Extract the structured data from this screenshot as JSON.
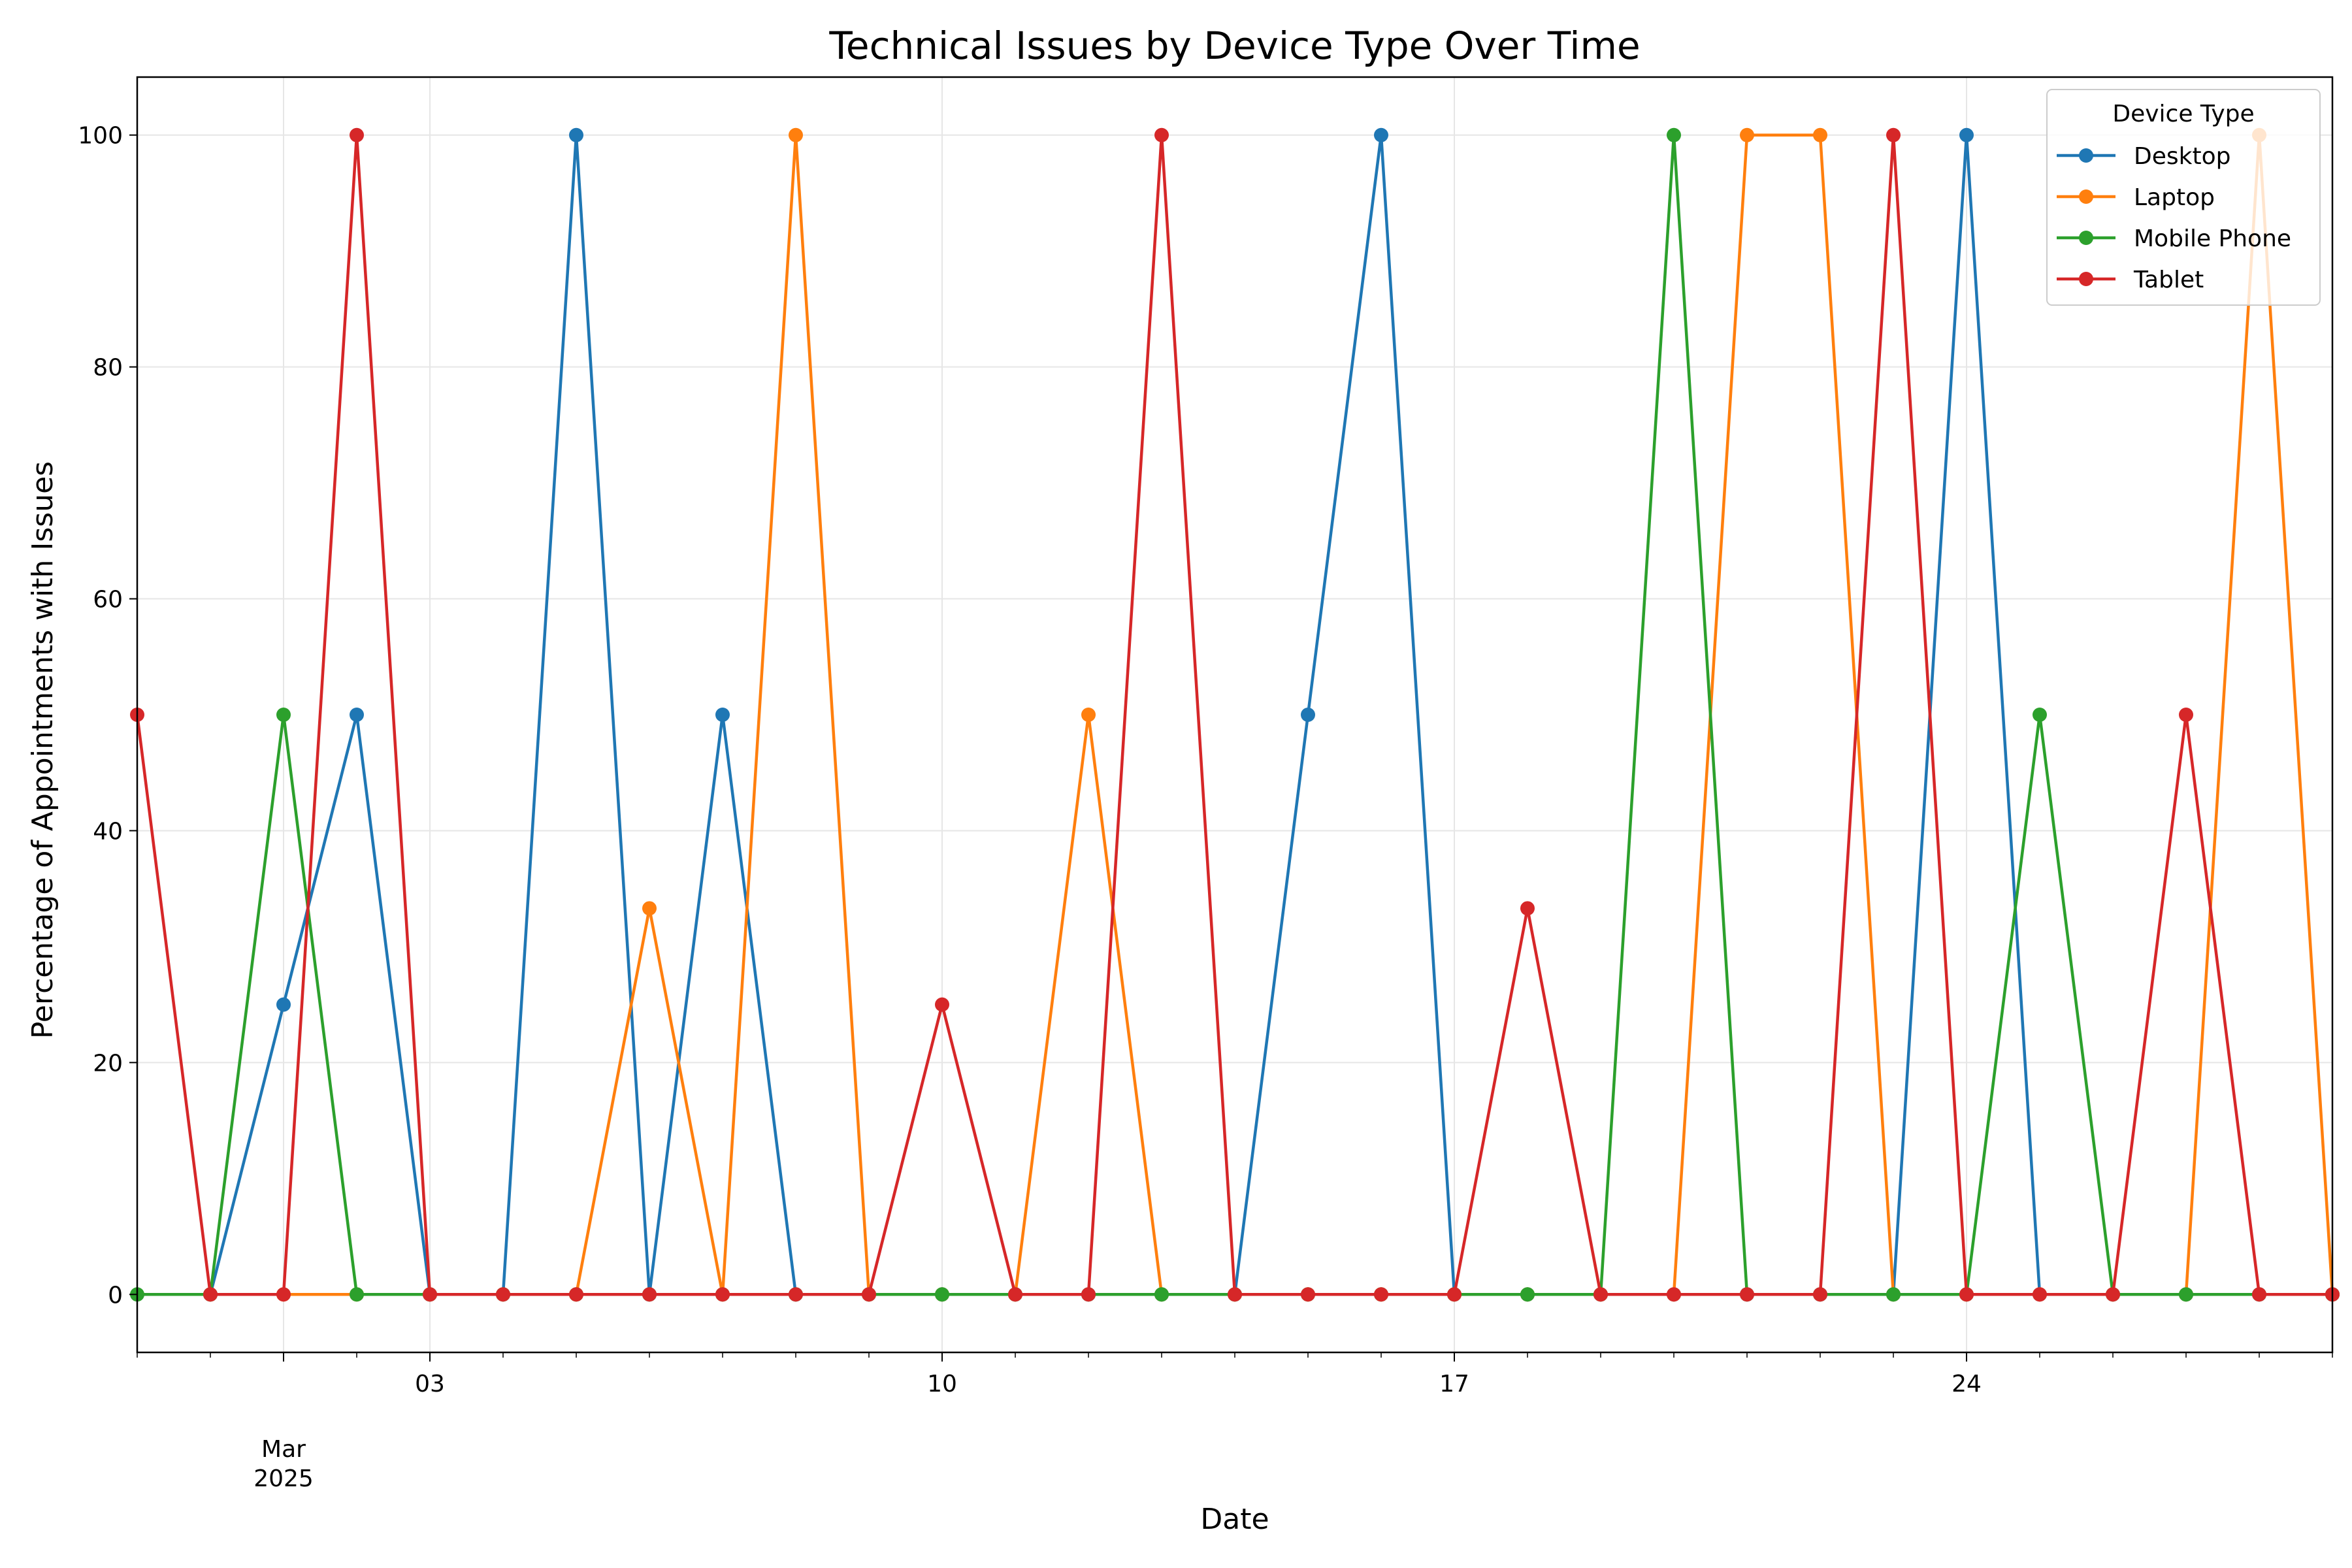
{
  "chart_data": {
    "type": "line",
    "title": "Technical Issues by Device Type Over Time",
    "xlabel": "Date",
    "ylabel": "Percentage of Appointments with Issues",
    "ylim": [
      -5,
      105
    ],
    "yticks": [
      0,
      20,
      40,
      60,
      80,
      100
    ],
    "x": [
      "2025-02-27",
      "2025-02-28",
      "2025-03-01",
      "2025-03-02",
      "2025-03-03",
      "2025-03-04",
      "2025-03-05",
      "2025-03-06",
      "2025-03-07",
      "2025-03-08",
      "2025-03-09",
      "2025-03-10",
      "2025-03-11",
      "2025-03-12",
      "2025-03-13",
      "2025-03-14",
      "2025-03-15",
      "2025-03-16",
      "2025-03-17",
      "2025-03-18",
      "2025-03-19",
      "2025-03-20",
      "2025-03-21",
      "2025-03-22",
      "2025-03-23",
      "2025-03-24",
      "2025-03-25",
      "2025-03-26",
      "2025-03-27",
      "2025-03-28",
      "2025-03-29"
    ],
    "xlim": [
      "2025-02-27",
      "2025-03-29"
    ],
    "xticks_major": [
      {
        "date": "2025-03-01",
        "label": [
          "Mar",
          "2025"
        ]
      },
      {
        "date": "2025-03-03",
        "label": [
          "03"
        ]
      },
      {
        "date": "2025-03-10",
        "label": [
          "10"
        ]
      },
      {
        "date": "2025-03-17",
        "label": [
          "17"
        ]
      },
      {
        "date": "2025-03-24",
        "label": [
          "24"
        ]
      }
    ],
    "grid": true,
    "legend": {
      "title": "Device Type",
      "placement": "upper right"
    },
    "series": [
      {
        "name": "Desktop",
        "color": "#1f77b4",
        "values": [
          null,
          0,
          25,
          50,
          0,
          0,
          100,
          0,
          50,
          0,
          0,
          0,
          0,
          0,
          0,
          0,
          50,
          100,
          0,
          0,
          0,
          0,
          0,
          0,
          0,
          100,
          0,
          0,
          0,
          0,
          0
        ]
      },
      {
        "name": "Laptop",
        "color": "#ff7f0e",
        "values": [
          null,
          0,
          0,
          0,
          0,
          0,
          0,
          33.3,
          0,
          100,
          0,
          0,
          0,
          50,
          0,
          0,
          0,
          0,
          0,
          0,
          0,
          0,
          100,
          100,
          0,
          0,
          0,
          0,
          0,
          100,
          0
        ]
      },
      {
        "name": "Mobile Phone",
        "color": "#2ca02c",
        "values": [
          0,
          0,
          50,
          0,
          0,
          0,
          0,
          0,
          0,
          0,
          0,
          0,
          0,
          0,
          0,
          0,
          0,
          0,
          0,
          0,
          0,
          100,
          0,
          0,
          0,
          0,
          50,
          0,
          0,
          0,
          0
        ]
      },
      {
        "name": "Tablet",
        "color": "#d62728",
        "values": [
          50,
          0,
          0,
          100,
          0,
          0,
          0,
          0,
          0,
          0,
          0,
          25,
          0,
          0,
          100,
          0,
          0,
          0,
          0,
          33.3,
          0,
          0,
          0,
          0,
          100,
          0,
          0,
          0,
          50,
          0,
          0
        ]
      }
    ]
  }
}
